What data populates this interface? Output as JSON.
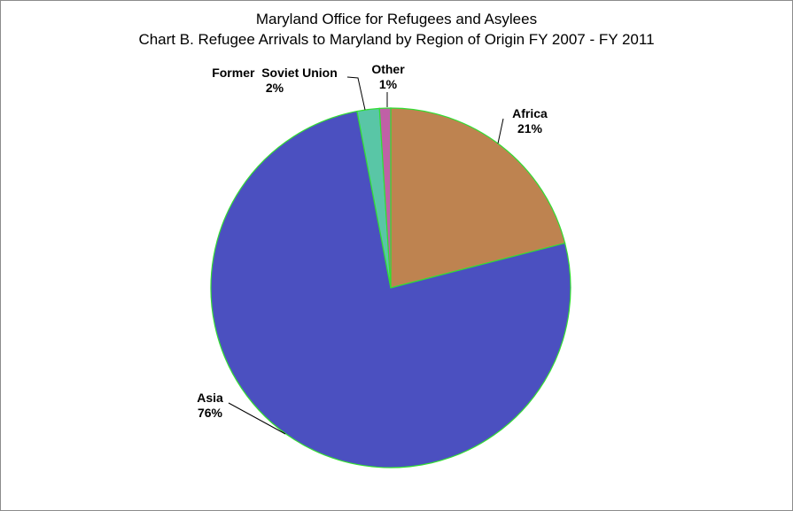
{
  "chart_data": {
    "type": "pie",
    "title": "Maryland Office for Refugees and Asylees",
    "subtitle": "Chart B.  Refugee Arrivals to Maryland by Region of Origin   FY 2007 - FY 2011",
    "slices": [
      {
        "name": "Africa",
        "value": 21,
        "label": "21%",
        "color": "#BE8350"
      },
      {
        "name": "Asia",
        "value": 76,
        "label": "76%",
        "color": "#4B50C0"
      },
      {
        "name": "Former  Soviet Union",
        "value": 2,
        "label": "2%",
        "color": "#59C6A6"
      },
      {
        "name": "Other",
        "value": 1,
        "label": "1%",
        "color": "#C060A6"
      }
    ],
    "slice_border_color": "#33DD33",
    "legend": "none"
  }
}
